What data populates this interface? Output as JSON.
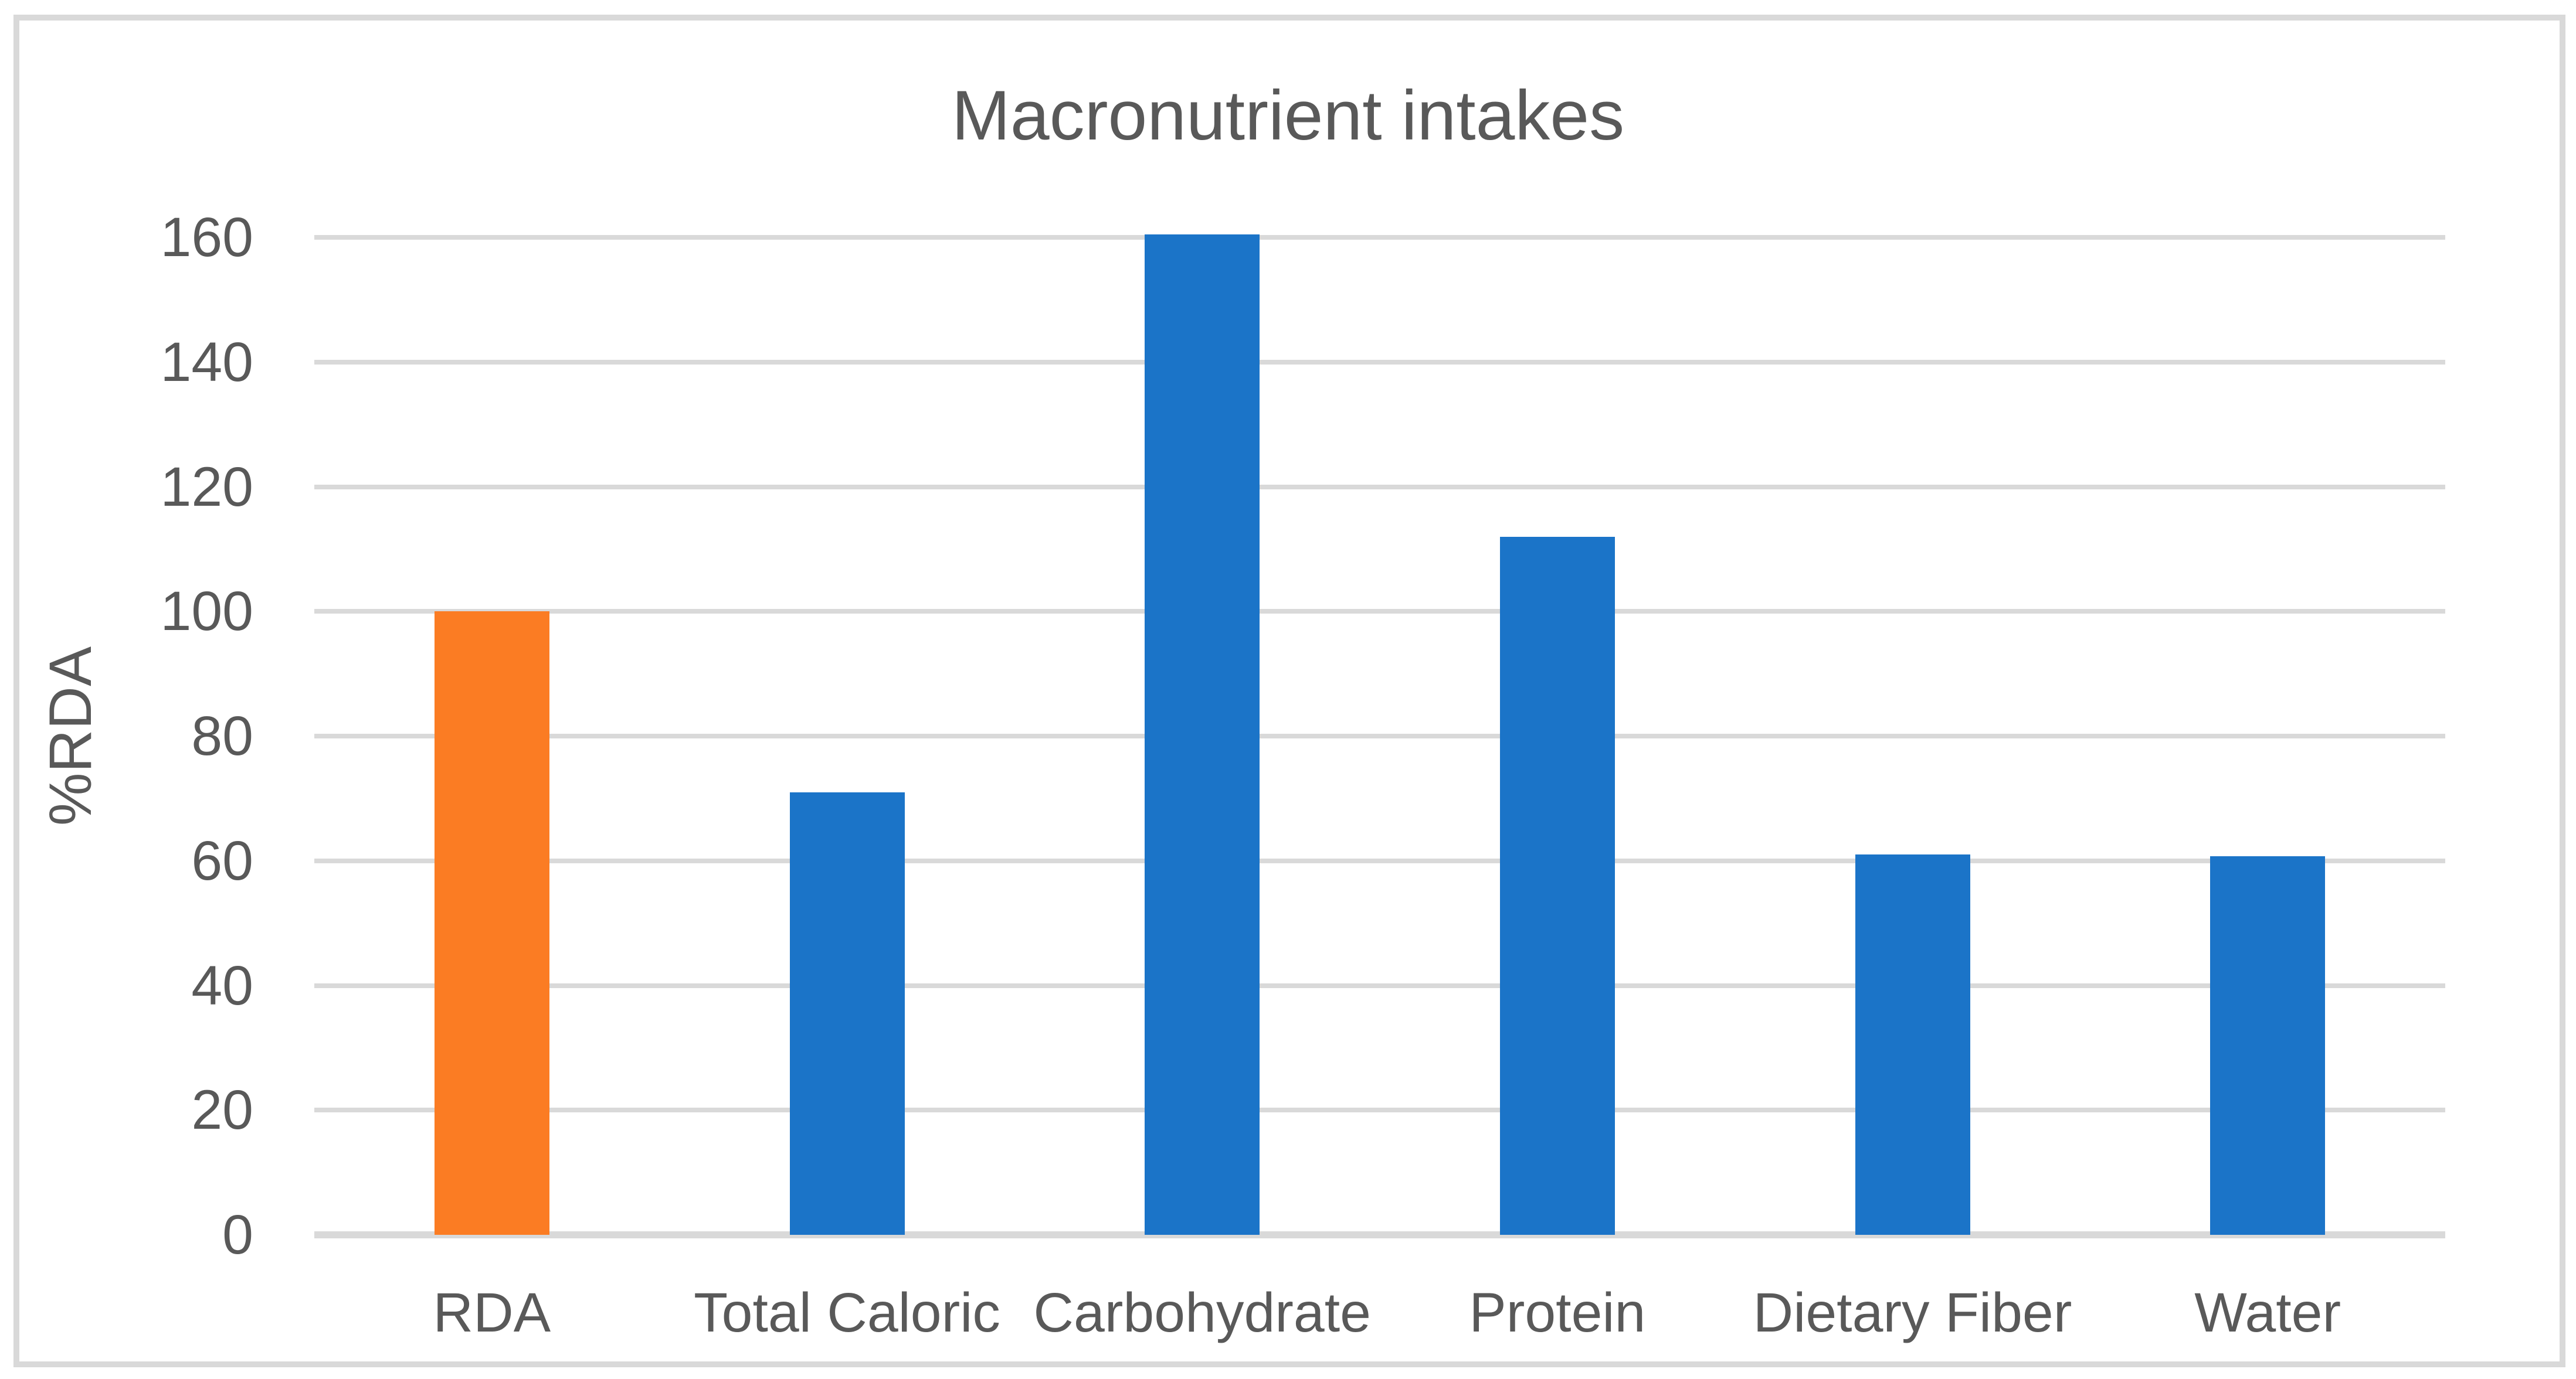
{
  "chart_data": {
    "type": "bar",
    "title": "Macronutrient intakes",
    "xlabel": "",
    "ylabel": "%RDA",
    "categories": [
      "RDA",
      "Total Caloric",
      "Carbohydrate",
      "Protein",
      "Dietary Fiber",
      "Water"
    ],
    "values": [
      100,
      71,
      160.5,
      112,
      61,
      60.7
    ],
    "bar_colors": [
      "#FB7C23",
      "#1B74C8",
      "#1B74C8",
      "#1B74C8",
      "#1B74C8",
      "#1B74C8"
    ],
    "highlighted_category": "RDA",
    "ylim": [
      0,
      160
    ],
    "yticks": [
      0,
      20,
      40,
      60,
      80,
      100,
      120,
      140,
      160
    ],
    "grid": "horizontal",
    "grid_color": "#D9D9D9",
    "axis_line_color": "#D9D9D9",
    "border_color": "#D9D9D9",
    "text_color": "#595959",
    "background_color": "#FFFFFF",
    "legend": false
  }
}
